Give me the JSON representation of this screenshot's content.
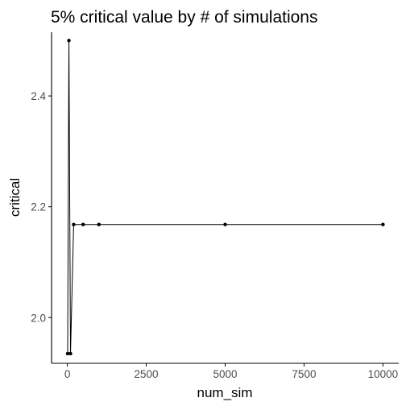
{
  "chart_data": {
    "type": "line",
    "title": "5% critical value by # of simulations",
    "xlabel": "num_sim",
    "ylabel": "critical",
    "xlim": [
      -500,
      10500
    ],
    "ylim": [
      1.9175,
      2.515
    ],
    "x_ticks": [
      {
        "value": 0,
        "label": "0"
      },
      {
        "value": 2500,
        "label": "2500"
      },
      {
        "value": 5000,
        "label": "5000"
      },
      {
        "value": 7500,
        "label": "7500"
      },
      {
        "value": 10000,
        "label": "10000"
      }
    ],
    "y_ticks": [
      {
        "value": 2.0,
        "label": "2.0"
      },
      {
        "value": 2.2,
        "label": "2.2"
      },
      {
        "value": 2.4,
        "label": "2.4"
      }
    ],
    "grid": false,
    "x": [
      10,
      50,
      100,
      200,
      500,
      1000,
      5000,
      10000
    ],
    "values": [
      1.935,
      2.5,
      1.935,
      2.168,
      2.168,
      2.168,
      2.168,
      2.168
    ],
    "colors": {
      "line": "#000000",
      "axis": "#000000",
      "tick_text": "#4d4d4d"
    }
  }
}
